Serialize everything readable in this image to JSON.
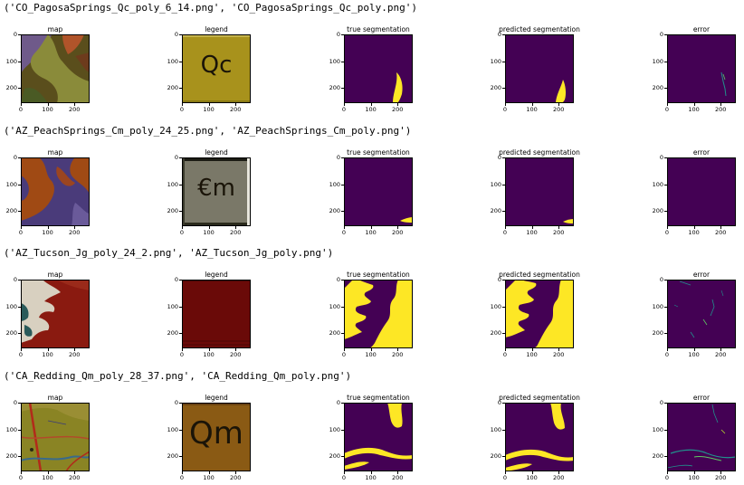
{
  "rows": [
    {
      "title": "('CO_PagosaSprings_Qc_poly_6_14.png', 'CO_PagosaSprings_Qc_poly.png')",
      "legend_text": "Qc"
    },
    {
      "title": "('AZ_PeachSprings_Cm_poly_24_25.png', 'AZ_PeachSprings_Cm_poly.png')",
      "legend_text": "€m"
    },
    {
      "title": "('AZ_Tucson_Jg_poly_24_2.png', 'AZ_Tucson_Jg_poly.png')",
      "legend_text": ""
    },
    {
      "title": "('CA_Redding_Qm_poly_28_37.png', 'CA_Redding_Qm_poly.png')",
      "legend_text": "Qm"
    }
  ],
  "panel_titles": [
    "map",
    "legend",
    "true segmentation",
    "predicted segmentation",
    "error"
  ],
  "axis": {
    "y_ticks": [
      "0",
      "100",
      "200"
    ],
    "x_ticks": [
      "0",
      "100",
      "200"
    ]
  },
  "colors": {
    "viridis_low": "#440154",
    "viridis_high": "#fde725",
    "error_mid": "#21918c"
  }
}
